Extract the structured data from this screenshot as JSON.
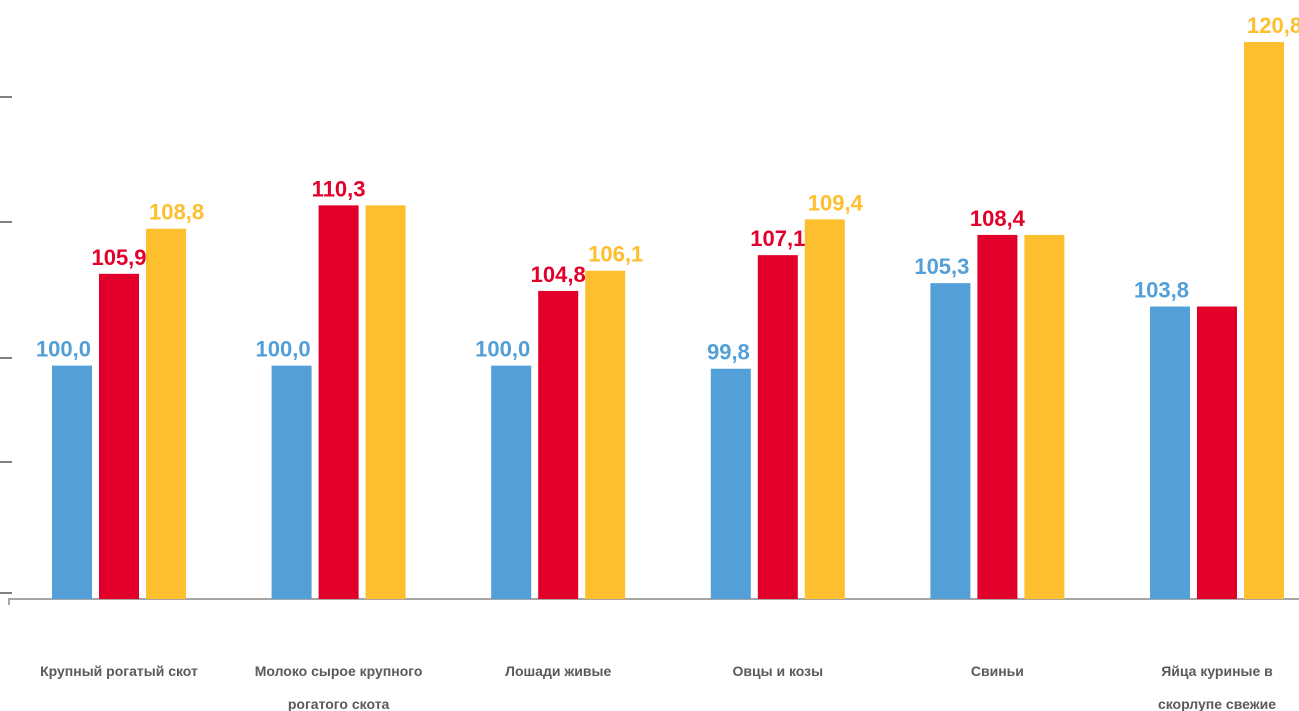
{
  "chart_data": {
    "type": "bar",
    "categories": [
      [
        "Крупный рогатый скот"
      ],
      [
        "Молоко сырое крупного",
        "рогатого скота"
      ],
      [
        "Лошади живые"
      ],
      [
        "Овцы и козы"
      ],
      [
        "Свиньи"
      ],
      [
        "Яйца куриные в",
        "скорлупе свежие"
      ]
    ],
    "series": [
      {
        "values": [
          100.0,
          100.0,
          100.0,
          99.8,
          105.3,
          103.8
        ],
        "labels": [
          "100,0",
          "100,0",
          "100,0",
          "99,8",
          "105,3",
          "103,8"
        ]
      },
      {
        "values": [
          105.9,
          110.3,
          104.8,
          107.1,
          108.4,
          103.8
        ],
        "labels": [
          "105,9",
          "110,3",
          "104,8",
          "107,1",
          "108,4",
          ""
        ]
      },
      {
        "values": [
          108.8,
          110.3,
          106.1,
          109.4,
          108.4,
          120.8
        ],
        "labels": [
          "108,8",
          "",
          "106,1",
          "109,4",
          "",
          "120,8"
        ]
      }
    ],
    "colors": [
      "#539fd8",
      "#e2002a",
      "#fdbf2d"
    ],
    "ylim": [
      85,
      120.8
    ],
    "title": "",
    "xlabel": "",
    "ylabel": "",
    "legend": "none",
    "grid": false
  }
}
